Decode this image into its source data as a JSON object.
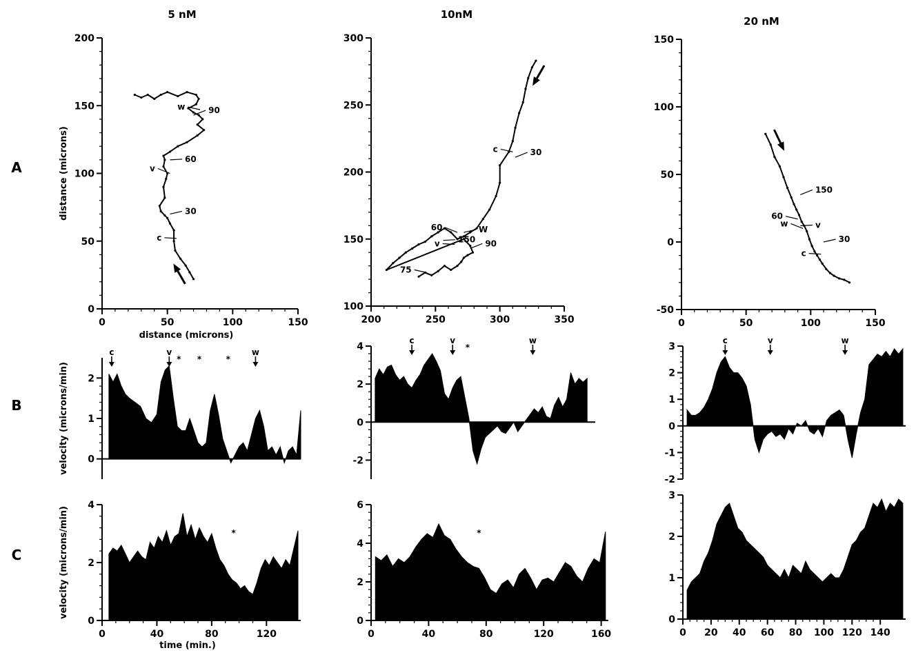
{
  "columns": [
    "5 nM",
    "10nM",
    "20 nM"
  ],
  "rows": [
    "A",
    "B",
    "C"
  ],
  "chart_data": [
    {
      "id": "A1",
      "type": "line",
      "xlabel": "distance (microns)",
      "ylabel": "distance (microns)",
      "xlim": [
        0,
        150
      ],
      "ylim": [
        0,
        200
      ],
      "xticks": [
        0,
        50,
        100,
        150
      ],
      "yticks": [
        0,
        50,
        100,
        150,
        200
      ],
      "x": [
        70,
        67,
        64,
        60,
        56,
        55,
        55,
        52,
        50,
        48,
        45,
        44,
        48,
        47,
        49,
        50,
        47,
        48,
        47,
        52,
        58,
        65,
        73,
        78,
        73,
        77,
        74,
        70,
        66,
        72,
        74,
        72,
        65,
        58,
        50,
        45,
        40,
        35,
        30,
        25
      ],
      "y": [
        22,
        27,
        32,
        37,
        43,
        50,
        58,
        63,
        67,
        69,
        72,
        76,
        82,
        90,
        96,
        100,
        105,
        110,
        113,
        116,
        120,
        123,
        128,
        132,
        136,
        140,
        143,
        145,
        148,
        151,
        155,
        158,
        160,
        157,
        160,
        158,
        155,
        158,
        156,
        158
      ],
      "annotations": [
        {
          "text": "90",
          "x": 70,
          "y": 143
        },
        {
          "text": "w",
          "x": 75,
          "y": 147
        },
        {
          "text": "60",
          "x": 52,
          "y": 110
        },
        {
          "text": "v",
          "x": 52,
          "y": 100
        },
        {
          "text": "30",
          "x": 52,
          "y": 70
        },
        {
          "text": "c",
          "x": 57,
          "y": 52
        }
      ]
    },
    {
      "id": "A2",
      "type": "line",
      "xlabel": "",
      "ylabel": "",
      "xlim": [
        200,
        350
      ],
      "ylim": [
        100,
        300
      ],
      "xticks": [
        200,
        250,
        300,
        350
      ],
      "yticks": [
        100,
        150,
        200,
        250,
        300
      ],
      "x": [
        328,
        325,
        322,
        320,
        318,
        315,
        312,
        310,
        307,
        300,
        300,
        297,
        292,
        287,
        282,
        277,
        272,
        267,
        262,
        257,
        252,
        247,
        242,
        237,
        232,
        227,
        222,
        217,
        212,
        272,
        277,
        279,
        275,
        272,
        270,
        267,
        262,
        257,
        252,
        247,
        242,
        237
      ],
      "y": [
        283,
        278,
        270,
        262,
        252,
        244,
        233,
        223,
        215,
        205,
        192,
        182,
        172,
        165,
        158,
        155,
        152,
        150,
        155,
        158,
        155,
        152,
        148,
        146,
        143,
        140,
        136,
        132,
        127,
        150,
        145,
        140,
        138,
        136,
        133,
        130,
        127,
        130,
        126,
        123,
        125,
        122
      ],
      "annotations": [
        {
          "text": "30",
          "x": 312,
          "y": 211
        },
        {
          "text": "c",
          "x": 310,
          "y": 215
        },
        {
          "text": "150",
          "x": 256,
          "y": 149
        },
        {
          "text": "60",
          "x": 267,
          "y": 155
        },
        {
          "text": "W",
          "x": 272,
          "y": 155
        },
        {
          "text": "v",
          "x": 265,
          "y": 146
        },
        {
          "text": "90",
          "x": 277,
          "y": 143
        },
        {
          "text": "75",
          "x": 243,
          "y": 125
        }
      ]
    },
    {
      "id": "A3",
      "type": "line",
      "xlabel": "",
      "ylabel": "",
      "xlim": [
        0,
        150
      ],
      "ylim": [
        -50,
        150
      ],
      "xticks": [
        0,
        50,
        100,
        150
      ],
      "yticks": [
        -50,
        0,
        50,
        100,
        150
      ],
      "x": [
        65,
        69,
        72,
        76,
        79,
        82,
        85,
        87,
        89,
        91,
        93,
        95,
        97,
        99,
        101,
        103,
        105,
        107,
        109,
        112,
        115,
        118,
        122,
        126,
        130
      ],
      "y": [
        80,
        72,
        63,
        56,
        48,
        40,
        33,
        28,
        24,
        20,
        15,
        12,
        8,
        2,
        -3,
        -7,
        -10,
        -13,
        -16,
        -20,
        -23,
        -25,
        -27,
        -28,
        -30
      ],
      "annotations": [
        {
          "text": "150",
          "x": 92,
          "y": 35
        },
        {
          "text": "60",
          "x": 90,
          "y": 17
        },
        {
          "text": "v",
          "x": 92,
          "y": 12
        },
        {
          "text": "w",
          "x": 94,
          "y": 10
        },
        {
          "text": "30",
          "x": 110,
          "y": 0
        },
        {
          "text": "c",
          "x": 108,
          "y": -9
        }
      ]
    },
    {
      "id": "B1",
      "type": "area",
      "ylabel": "velocity (microns/min)",
      "xlim": [
        0,
        145
      ],
      "ylim": [
        -0.5,
        2.5
      ],
      "yticks": [
        0,
        1,
        2
      ],
      "xticks": [],
      "x": [
        5,
        8,
        11,
        14,
        17,
        20,
        24,
        28,
        32,
        36,
        40,
        43,
        46,
        49,
        52,
        55,
        58,
        61,
        64,
        67,
        70,
        73,
        76,
        79,
        82,
        85,
        88,
        91,
        94,
        97,
        100,
        103,
        106,
        109,
        112,
        115,
        118,
        121,
        124,
        127,
        130,
        133,
        136,
        139,
        142,
        145
      ],
      "y": [
        2.1,
        1.9,
        2.1,
        1.8,
        1.6,
        1.5,
        1.4,
        1.3,
        1.0,
        0.9,
        1.1,
        1.9,
        2.2,
        2.3,
        1.5,
        0.8,
        0.7,
        0.7,
        1.0,
        0.7,
        0.4,
        0.3,
        0.4,
        1.2,
        1.6,
        1.1,
        0.5,
        0.2,
        -0.1,
        0.1,
        0.3,
        0.4,
        0.2,
        0.6,
        1.0,
        1.2,
        0.8,
        0.2,
        0.3,
        0.1,
        0.3,
        -0.1,
        0.2,
        0.3,
        0.1,
        1.2
      ],
      "markers": [
        {
          "text": "c",
          "x": 7,
          "kind": "arrow"
        },
        {
          "text": "v",
          "x": 49,
          "kind": "arrow"
        },
        {
          "text": "*",
          "x": 56,
          "kind": "star"
        },
        {
          "text": "*",
          "x": 71,
          "kind": "star"
        },
        {
          "text": "*",
          "x": 92,
          "kind": "star"
        },
        {
          "text": "w",
          "x": 112,
          "kind": "arrow"
        }
      ]
    },
    {
      "id": "B2",
      "type": "area",
      "ylabel": "",
      "xlim": [
        0,
        165
      ],
      "ylim": [
        -3,
        4
      ],
      "yticks": [
        -2,
        0,
        2,
        4
      ],
      "xticks": [],
      "x": [
        3,
        6,
        9,
        12,
        15,
        18,
        21,
        24,
        27,
        30,
        33,
        36,
        39,
        42,
        45,
        48,
        51,
        54,
        57,
        60,
        63,
        66,
        69,
        72,
        75,
        78,
        81,
        84,
        87,
        90,
        93,
        96,
        99,
        102,
        105,
        108,
        111,
        114,
        117,
        120,
        123,
        126,
        129,
        132,
        135,
        138,
        141,
        144,
        147,
        150,
        153,
        156,
        159
      ],
      "y": [
        2.3,
        2.8,
        2.5,
        2.9,
        3.0,
        2.5,
        2.2,
        2.4,
        2.0,
        1.8,
        2.2,
        2.5,
        3.0,
        3.3,
        3.6,
        3.2,
        2.7,
        1.5,
        1.2,
        1.8,
        2.2,
        2.4,
        1.3,
        0.2,
        -1.5,
        -2.2,
        -1.4,
        -0.8,
        -0.6,
        -0.4,
        -0.2,
        -0.5,
        -0.6,
        -0.3,
        0.0,
        -0.5,
        -0.2,
        0.1,
        0.4,
        0.7,
        0.5,
        0.8,
        0.3,
        0.2,
        0.9,
        1.3,
        0.8,
        1.2,
        2.6,
        2.0,
        2.3,
        2.1,
        2.3
      ],
      "markers": [
        {
          "text": "c",
          "x": 30,
          "kind": "arrow"
        },
        {
          "text": "v",
          "x": 60,
          "kind": "arrow"
        },
        {
          "text": "*",
          "x": 71,
          "kind": "star"
        },
        {
          "text": "w",
          "x": 119,
          "kind": "arrow"
        }
      ]
    },
    {
      "id": "B3",
      "type": "area",
      "ylabel": "",
      "xlim": [
        0,
        158
      ],
      "ylim": [
        -2,
        3
      ],
      "yticks": [
        -2,
        -1,
        0,
        1,
        2,
        3
      ],
      "xticks": [],
      "x": [
        3,
        6,
        9,
        12,
        15,
        18,
        21,
        24,
        27,
        30,
        33,
        36,
        39,
        42,
        45,
        48,
        51,
        54,
        57,
        60,
        63,
        66,
        69,
        72,
        75,
        78,
        81,
        84,
        87,
        90,
        93,
        96,
        99,
        102,
        105,
        108,
        111,
        114,
        117,
        120,
        123,
        126,
        129,
        132,
        135,
        138,
        141,
        144,
        147,
        150,
        153,
        156
      ],
      "y": [
        0.6,
        0.4,
        0.4,
        0.5,
        0.7,
        1.0,
        1.4,
        2.0,
        2.4,
        2.6,
        2.2,
        2.0,
        2.0,
        1.8,
        1.5,
        0.8,
        -0.5,
        -1.0,
        -0.5,
        -0.3,
        -0.2,
        -0.4,
        -0.3,
        -0.5,
        -0.1,
        -0.3,
        0.1,
        0.0,
        0.2,
        -0.2,
        -0.3,
        -0.1,
        -0.4,
        0.2,
        0.4,
        0.5,
        0.6,
        0.4,
        -0.5,
        -1.2,
        -0.3,
        0.5,
        1.0,
        2.3,
        2.5,
        2.7,
        2.6,
        2.8,
        2.6,
        2.9,
        2.7,
        2.9
      ],
      "markers": [
        {
          "text": "c",
          "x": 30,
          "kind": "arrow"
        },
        {
          "text": "v",
          "x": 62,
          "kind": "arrow"
        },
        {
          "text": "w",
          "x": 115,
          "kind": "arrow"
        }
      ]
    },
    {
      "id": "C1",
      "type": "area",
      "ylabel": "velocity  (microns/min)",
      "xlabel": "time (min.)",
      "xlim": [
        0,
        145
      ],
      "ylim": [
        0,
        4
      ],
      "yticks": [
        0,
        2,
        4
      ],
      "xticks": [
        0,
        40,
        80,
        120
      ],
      "x": [
        5,
        8,
        11,
        14,
        17,
        20,
        23,
        26,
        29,
        32,
        35,
        38,
        41,
        44,
        47,
        50,
        53,
        56,
        59,
        62,
        65,
        68,
        71,
        74,
        77,
        80,
        83,
        86,
        89,
        92,
        95,
        98,
        101,
        104,
        107,
        110,
        113,
        116,
        119,
        122,
        125,
        128,
        131,
        134,
        137,
        140,
        143
      ],
      "y": [
        2.3,
        2.5,
        2.4,
        2.6,
        2.3,
        2.0,
        2.2,
        2.4,
        2.2,
        2.1,
        2.7,
        2.5,
        2.9,
        2.7,
        3.1,
        2.6,
        2.9,
        3.0,
        3.7,
        2.9,
        3.3,
        2.8,
        3.2,
        2.9,
        2.7,
        3.0,
        2.5,
        2.1,
        1.9,
        1.6,
        1.4,
        1.3,
        1.1,
        1.2,
        1.0,
        0.9,
        1.3,
        1.8,
        2.1,
        1.9,
        2.2,
        2.0,
        1.8,
        2.1,
        1.9,
        2.5,
        3.1
      ],
      "markers": [
        {
          "text": "*",
          "x": 96,
          "kind": "star"
        }
      ]
    },
    {
      "id": "C2",
      "type": "area",
      "ylabel": "",
      "xlim": [
        0,
        165
      ],
      "ylim": [
        0,
        6
      ],
      "yticks": [
        0,
        2,
        4,
        6
      ],
      "xticks": [
        0,
        40,
        80,
        120,
        160
      ],
      "x": [
        3,
        7,
        11,
        15,
        19,
        23,
        27,
        31,
        35,
        39,
        43,
        47,
        51,
        55,
        59,
        63,
        67,
        71,
        75,
        79,
        83,
        87,
        91,
        95,
        99,
        103,
        107,
        111,
        115,
        119,
        123,
        127,
        131,
        135,
        139,
        143,
        147,
        151,
        155,
        159,
        163
      ],
      "y": [
        3.3,
        3.1,
        3.4,
        2.8,
        3.2,
        3.0,
        3.3,
        3.8,
        4.2,
        4.5,
        4.3,
        5.0,
        4.4,
        4.2,
        3.7,
        3.3,
        3.0,
        2.8,
        2.7,
        2.2,
        1.6,
        1.4,
        1.9,
        2.1,
        1.7,
        2.4,
        2.7,
        2.2,
        1.6,
        2.1,
        2.2,
        2.0,
        2.5,
        3.0,
        2.8,
        2.3,
        2.0,
        2.7,
        3.2,
        3.0,
        4.6
      ],
      "markers": [
        {
          "text": "*",
          "x": 75,
          "kind": "star"
        }
      ]
    },
    {
      "id": "C3",
      "type": "area",
      "ylabel": "",
      "xlim": [
        0,
        158
      ],
      "ylim": [
        0,
        3
      ],
      "yticks": [
        0,
        1,
        2,
        3
      ],
      "xticks": [
        0,
        20,
        40,
        60,
        80,
        100,
        120,
        140
      ],
      "x": [
        3,
        6,
        9,
        12,
        15,
        18,
        21,
        24,
        27,
        30,
        33,
        36,
        39,
        42,
        45,
        48,
        51,
        54,
        57,
        60,
        63,
        66,
        69,
        72,
        75,
        78,
        81,
        84,
        87,
        90,
        93,
        96,
        99,
        102,
        105,
        108,
        111,
        114,
        117,
        120,
        123,
        126,
        129,
        132,
        135,
        138,
        141,
        144,
        147,
        150,
        153,
        156
      ],
      "y": [
        0.7,
        0.9,
        1.0,
        1.1,
        1.4,
        1.6,
        1.9,
        2.3,
        2.5,
        2.7,
        2.8,
        2.5,
        2.2,
        2.1,
        1.9,
        1.8,
        1.7,
        1.6,
        1.5,
        1.3,
        1.2,
        1.1,
        1.0,
        1.2,
        1.0,
        1.3,
        1.2,
        1.1,
        1.4,
        1.2,
        1.1,
        1.0,
        0.9,
        1.0,
        1.1,
        1.0,
        1.0,
        1.2,
        1.5,
        1.8,
        1.9,
        2.1,
        2.2,
        2.5,
        2.8,
        2.7,
        2.9,
        2.6,
        2.8,
        2.7,
        2.9,
        2.8
      ],
      "markers": []
    }
  ]
}
